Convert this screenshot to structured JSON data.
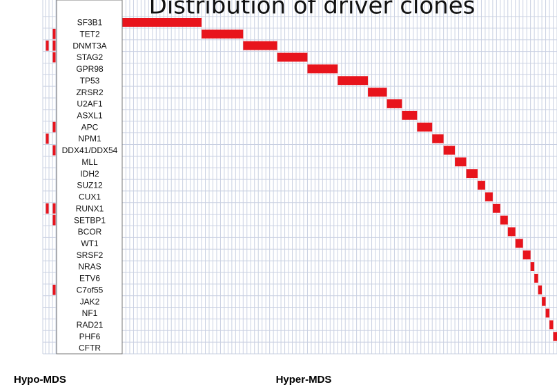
{
  "chart_data": {
    "type": "oncoprint",
    "title": "Distribution of driver clones",
    "color": "#e8141c",
    "genes": [
      "SF3B1",
      "TET2",
      "DNMT3A",
      "STAG2",
      "GPR98",
      "TP53",
      "ZRSR2",
      "U2AF1",
      "ASXL1",
      "APC",
      "NPM1",
      "DDX41/DDX54",
      "MLL",
      "IDH2",
      "SUZ12",
      "CUX1",
      "RUNX1",
      "SETBP1",
      "BCOR",
      "WT1",
      "SRSF2",
      "NRAS",
      "ETV6",
      "C7of55",
      "JAK2",
      "NF1",
      "RAD21",
      "PHF6",
      "CFTR"
    ],
    "groups": [
      {
        "name": "Hypo-MDS",
        "patients": 3,
        "mutated": [
          [],
          [
            2
          ],
          [
            0,
            2
          ],
          [
            2
          ],
          [],
          [],
          [],
          [],
          [],
          [
            2
          ],
          [
            0
          ],
          [
            2
          ],
          [],
          [],
          [],
          [],
          [
            0,
            2
          ],
          [
            2
          ],
          [],
          [],
          [],
          [],
          [],
          [
            2
          ],
          [],
          [],
          [],
          [],
          []
        ]
      },
      {
        "name": "Hyper-MDS",
        "patients": 115,
        "counts": [
          21,
          11,
          9,
          8,
          8,
          8,
          5,
          4,
          4,
          4,
          3,
          3,
          3,
          3,
          2,
          2,
          2,
          2,
          2,
          2,
          2,
          1,
          1,
          1,
          1,
          1,
          1,
          1,
          0
        ]
      }
    ]
  }
}
